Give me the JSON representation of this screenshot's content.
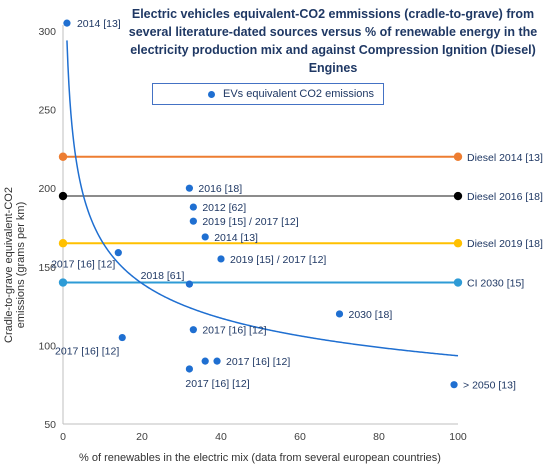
{
  "chart_data": {
    "type": "scatter",
    "title": "Electric vehicles equivalent-CO2 emmissions (cradle-to-grave) from several literature-dated sources versus % of renewable energy in the electricity production mix and against Compression Ignition (Diesel) Engines",
    "xlabel": "% of renewables in the electric mix (data from several european countries)",
    "ylabel": "Cradle-to-grave equivalent-CO2 emissions (grams per km)",
    "xlim": [
      0,
      100
    ],
    "ylim": [
      50,
      300
    ],
    "xticks": [
      "0",
      "20",
      "40",
      "60",
      "80",
      "100"
    ],
    "yticks": [
      "50",
      "100",
      "150",
      "200",
      "250",
      "300"
    ],
    "legend": {
      "placement": "top",
      "label": "EVs equivalent CO2 emissions"
    },
    "grid": false,
    "series": [
      {
        "name": "EVs equivalent CO2 emissions",
        "color": "#1f6fd1",
        "points": [
          {
            "x": 1,
            "y": 305,
            "label": "2014 [13]"
          },
          {
            "x": 32,
            "y": 200,
            "label": "2016 [18]"
          },
          {
            "x": 33,
            "y": 188,
            "label": "2012 [62]"
          },
          {
            "x": 33,
            "y": 179,
            "label": "2019  [15] / 2017  [12]"
          },
          {
            "x": 36,
            "y": 169,
            "label": "2014 [13]"
          },
          {
            "x": 14,
            "y": 159,
            "label": "2017 [16] [12]"
          },
          {
            "x": 40,
            "y": 155,
            "label": "2019  [15] / 2017  [12]"
          },
          {
            "x": 32,
            "y": 139,
            "label": "2018 [61]"
          },
          {
            "x": 70,
            "y": 120,
            "label": "2030 [18]"
          },
          {
            "x": 33,
            "y": 110,
            "label": "2017 [16] [12]"
          },
          {
            "x": 15,
            "y": 105,
            "label": "2017 [16] [12]"
          },
          {
            "x": 36,
            "y": 90,
            "label": ""
          },
          {
            "x": 39,
            "y": 90,
            "label": "2017 [16] [12]"
          },
          {
            "x": 32,
            "y": 85,
            "label": "2017 [16] [12]"
          },
          {
            "x": 99,
            "y": 75,
            "label": "> 2050  [13]"
          }
        ]
      }
    ],
    "reference_lines": [
      {
        "name": "Diesel 2014 [13]",
        "y": 220,
        "color": "#ed7d31"
      },
      {
        "name": "Diesel 2016 [18]",
        "y": 195,
        "color": "#8c8c8c",
        "marker": "#000000"
      },
      {
        "name": "Diesel 2019 [18]",
        "y": 165,
        "color": "#ffc000"
      },
      {
        "name": "CI 2030 [15]",
        "y": 140,
        "color": "#2e9bd6"
      }
    ],
    "trendline": {
      "type": "power",
      "color": "#1f6fd1",
      "a": 294,
      "b": -0.249,
      "x_range": [
        1,
        100
      ]
    }
  }
}
